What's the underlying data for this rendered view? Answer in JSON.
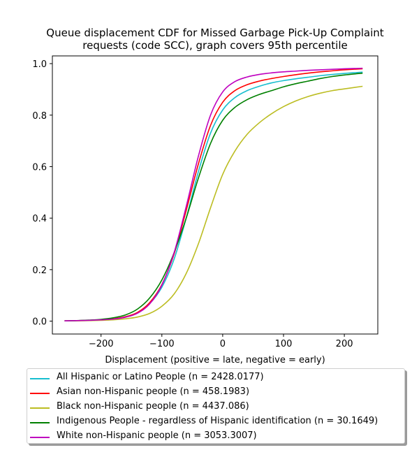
{
  "chart_data": {
    "type": "line",
    "title": "Queue displacement CDF for Missed Garbage Pick-Up Complaint requests (code SCC), graph covers 95th percentile",
    "title_lines": [
      "Queue displacement CDF for Missed Garbage Pick-Up Complaint",
      "requests (code SCC), graph covers 95th percentile"
    ],
    "xlabel": "Displacement (positive = late, negative = early)",
    "ylabel": "",
    "xlim": [
      -280,
      255
    ],
    "ylim": [
      -0.05,
      1.03
    ],
    "xticks": [
      -200,
      -100,
      0,
      100,
      200
    ],
    "xtick_labels": [
      "−200",
      "−100",
      "0",
      "100",
      "200"
    ],
    "yticks": [
      0.0,
      0.2,
      0.4,
      0.6,
      0.8,
      1.0
    ],
    "ytick_labels": [
      "0.0",
      "0.2",
      "0.4",
      "0.6",
      "0.8",
      "1.0"
    ],
    "grid": false,
    "legend_position": "below",
    "x": [
      -260,
      -240,
      -220,
      -200,
      -180,
      -160,
      -140,
      -120,
      -100,
      -80,
      -60,
      -40,
      -20,
      0,
      20,
      40,
      60,
      80,
      100,
      120,
      140,
      160,
      180,
      200,
      230
    ],
    "series": [
      {
        "name": "All Hispanic or Latino People (n = 2428.0177)",
        "color": "#17becf",
        "values": [
          0.001,
          0.002,
          0.003,
          0.005,
          0.009,
          0.017,
          0.033,
          0.068,
          0.132,
          0.24,
          0.4,
          0.58,
          0.73,
          0.82,
          0.868,
          0.895,
          0.912,
          0.925,
          0.934,
          0.941,
          0.947,
          0.953,
          0.958,
          0.962,
          0.967
        ]
      },
      {
        "name": "Asian non-Hispanic people (n = 458.1983)",
        "color": "#ff0000",
        "values": [
          0.001,
          0.002,
          0.003,
          0.005,
          0.009,
          0.017,
          0.034,
          0.072,
          0.142,
          0.26,
          0.43,
          0.61,
          0.76,
          0.85,
          0.895,
          0.918,
          0.932,
          0.942,
          0.95,
          0.957,
          0.963,
          0.968,
          0.972,
          0.976,
          0.98
        ]
      },
      {
        "name": "Black non-Hispanic people (n = 4437.086)",
        "color": "#bcbd22",
        "values": [
          0.001,
          0.001,
          0.002,
          0.003,
          0.005,
          0.009,
          0.016,
          0.03,
          0.058,
          0.105,
          0.185,
          0.3,
          0.44,
          0.57,
          0.66,
          0.725,
          0.77,
          0.805,
          0.833,
          0.855,
          0.872,
          0.885,
          0.895,
          0.902,
          0.912
        ]
      },
      {
        "name": "Indigenous People - regardless of Hispanic identification (n = 30.1649)",
        "color": "#008000",
        "values": [
          0.001,
          0.002,
          0.004,
          0.007,
          0.013,
          0.024,
          0.047,
          0.09,
          0.16,
          0.265,
          0.4,
          0.555,
          0.69,
          0.78,
          0.83,
          0.86,
          0.88,
          0.895,
          0.91,
          0.922,
          0.932,
          0.942,
          0.95,
          0.956,
          0.963
        ]
      },
      {
        "name": "White non-Hispanic people (n = 3053.3007)",
        "color": "#bf00bf",
        "values": [
          0.001,
          0.002,
          0.003,
          0.005,
          0.008,
          0.015,
          0.031,
          0.067,
          0.14,
          0.265,
          0.445,
          0.64,
          0.8,
          0.89,
          0.93,
          0.948,
          0.958,
          0.964,
          0.968,
          0.971,
          0.974,
          0.976,
          0.978,
          0.98,
          0.982
        ]
      }
    ]
  }
}
